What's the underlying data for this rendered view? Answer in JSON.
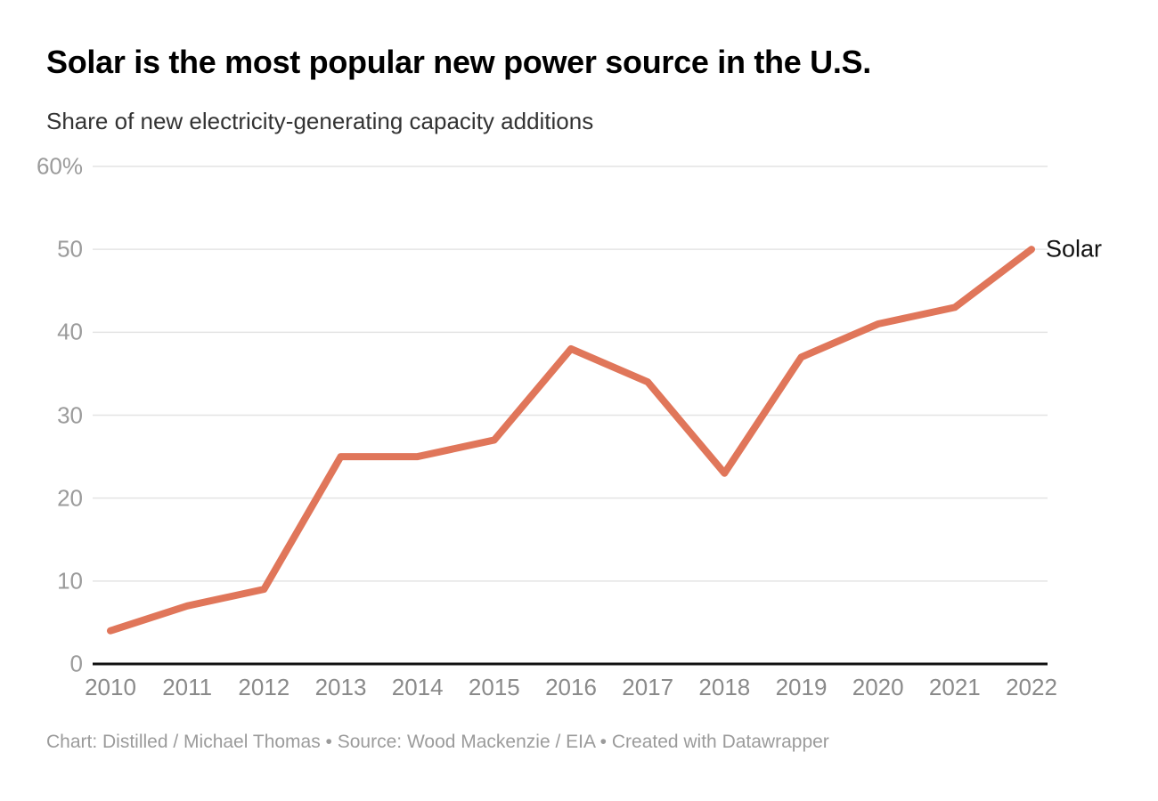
{
  "header": {
    "title": "Solar is the most popular new power source in the U.S.",
    "subtitle": "Share of new electricity-generating capacity additions"
  },
  "chart_data": {
    "type": "line",
    "title": "Solar is the most popular new power source in the U.S.",
    "subtitle": "Share of new electricity-generating capacity additions",
    "categories": [
      "2010",
      "2011",
      "2012",
      "2013",
      "2014",
      "2015",
      "2016",
      "2017",
      "2018",
      "2019",
      "2020",
      "2021",
      "2022"
    ],
    "series": [
      {
        "name": "Solar",
        "color": "#E0765A",
        "values": [
          4,
          7,
          9,
          25,
          25,
          27,
          38,
          34,
          23,
          37,
          41,
          43,
          50
        ]
      }
    ],
    "xlabel": "",
    "ylabel": "",
    "unit": "%",
    "ylim": [
      0,
      60
    ],
    "yticks": [
      {
        "value": 0,
        "label": "0"
      },
      {
        "value": 10,
        "label": "10"
      },
      {
        "value": 20,
        "label": "20"
      },
      {
        "value": 30,
        "label": "30"
      },
      {
        "value": 40,
        "label": "40"
      },
      {
        "value": 50,
        "label": "50"
      },
      {
        "value": 60,
        "label": "60%"
      }
    ],
    "grid": "horizontal",
    "legend_position": "end-of-line"
  },
  "footer": {
    "text": "Chart: Distilled / Michael Thomas • Source: Wood Mackenzie / EIA • Created with Datawrapper"
  },
  "colors": {
    "accent_line": "#E0765A",
    "gridline": "#E4E4E4",
    "baseline": "#111111",
    "y_tick_label": "#9B9B9B",
    "x_tick_label": "#8A8A8A",
    "title_text": "#000000",
    "subtitle_text": "#333333",
    "footer_text": "#9B9B9B",
    "background": "#FFFFFF"
  }
}
